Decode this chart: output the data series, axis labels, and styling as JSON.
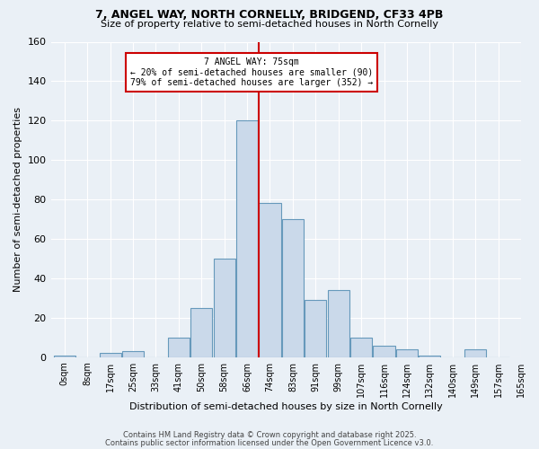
{
  "title1": "7, ANGEL WAY, NORTH CORNELLY, BRIDGEND, CF33 4PB",
  "title2": "Size of property relative to semi-detached houses in North Cornelly",
  "xlabel": "Distribution of semi-detached houses by size in North Cornelly",
  "ylabel": "Number of semi-detached properties",
  "annotation_title": "7 ANGEL WAY: 75sqm",
  "annotation_line1": "← 20% of semi-detached houses are smaller (90)",
  "annotation_line2": "79% of semi-detached houses are larger (352) →",
  "property_size_idx": 9,
  "bar_color": "#cad9ea",
  "bar_edge_color": "#6699bb",
  "vline_color": "#cc0000",
  "background_color": "#eaf0f6",
  "grid_color": "#ffffff",
  "bin_labels": [
    "0sqm",
    "8sqm",
    "17sqm",
    "25sqm",
    "33sqm",
    "41sqm",
    "50sqm",
    "58sqm",
    "66sqm",
    "74sqm",
    "83sqm",
    "91sqm",
    "99sqm",
    "107sqm",
    "116sqm",
    "124sqm",
    "132sqm",
    "140sqm",
    "149sqm",
    "157sqm",
    "165sqm"
  ],
  "bar_heights": [
    1,
    0,
    2,
    3,
    0,
    10,
    25,
    50,
    120,
    78,
    70,
    29,
    34,
    10,
    6,
    4,
    1,
    0,
    4,
    0
  ],
  "ylim": [
    0,
    160
  ],
  "yticks": [
    0,
    20,
    40,
    60,
    80,
    100,
    120,
    140,
    160
  ],
  "footer_line1": "Contains HM Land Registry data © Crown copyright and database right 2025.",
  "footer_line2": "Contains public sector information licensed under the Open Government Licence v3.0."
}
